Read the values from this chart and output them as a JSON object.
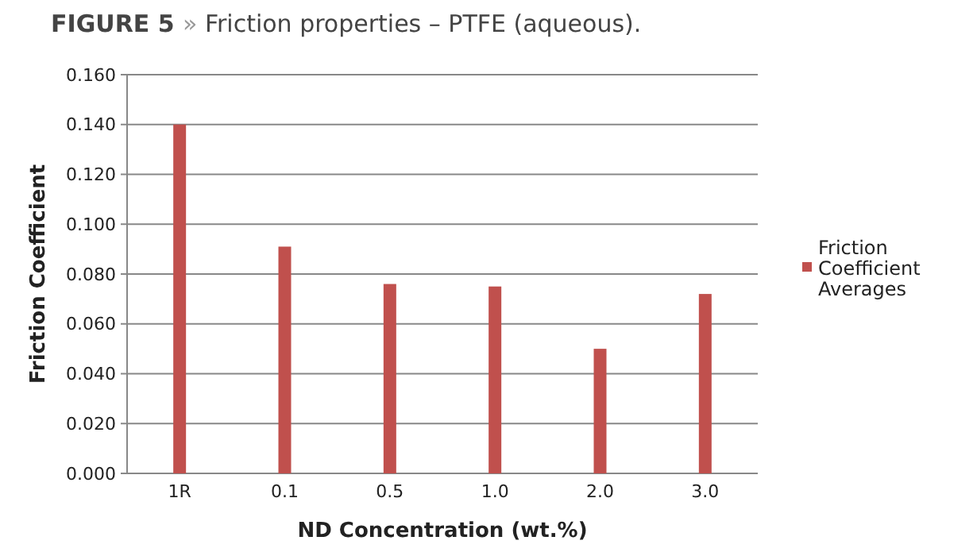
{
  "chart_data": {
    "type": "bar",
    "title": "FIGURE 5 » Friction properties – PTFE (aqueous).",
    "xlabel": "ND Concentration (wt.%)",
    "ylabel": "Friction Coefficient",
    "categories": [
      "1R",
      "0.1",
      "0.5",
      "1.0",
      "2.0",
      "3.0"
    ],
    "series": [
      {
        "name": "Friction Coefficient Averages",
        "color": "#c0504d",
        "values": [
          0.14,
          0.091,
          0.076,
          0.075,
          0.05,
          0.072
        ]
      }
    ],
    "ylim": [
      0,
      0.16
    ],
    "yticks": [
      {
        "value": 0,
        "label": "0.000"
      },
      {
        "value": 0.02,
        "label": "0.020"
      },
      {
        "value": 0.04,
        "label": "0.040"
      },
      {
        "value": 0.06,
        "label": "0.060"
      },
      {
        "value": 0.08,
        "label": "0.080"
      },
      {
        "value": 0.1,
        "label": "0.100"
      },
      {
        "value": 0.12,
        "label": "0.120"
      },
      {
        "value": 0.14,
        "label": "0.140"
      },
      {
        "value": 0.16,
        "label": "0.160"
      }
    ],
    "grid": "y",
    "legend": "right"
  }
}
